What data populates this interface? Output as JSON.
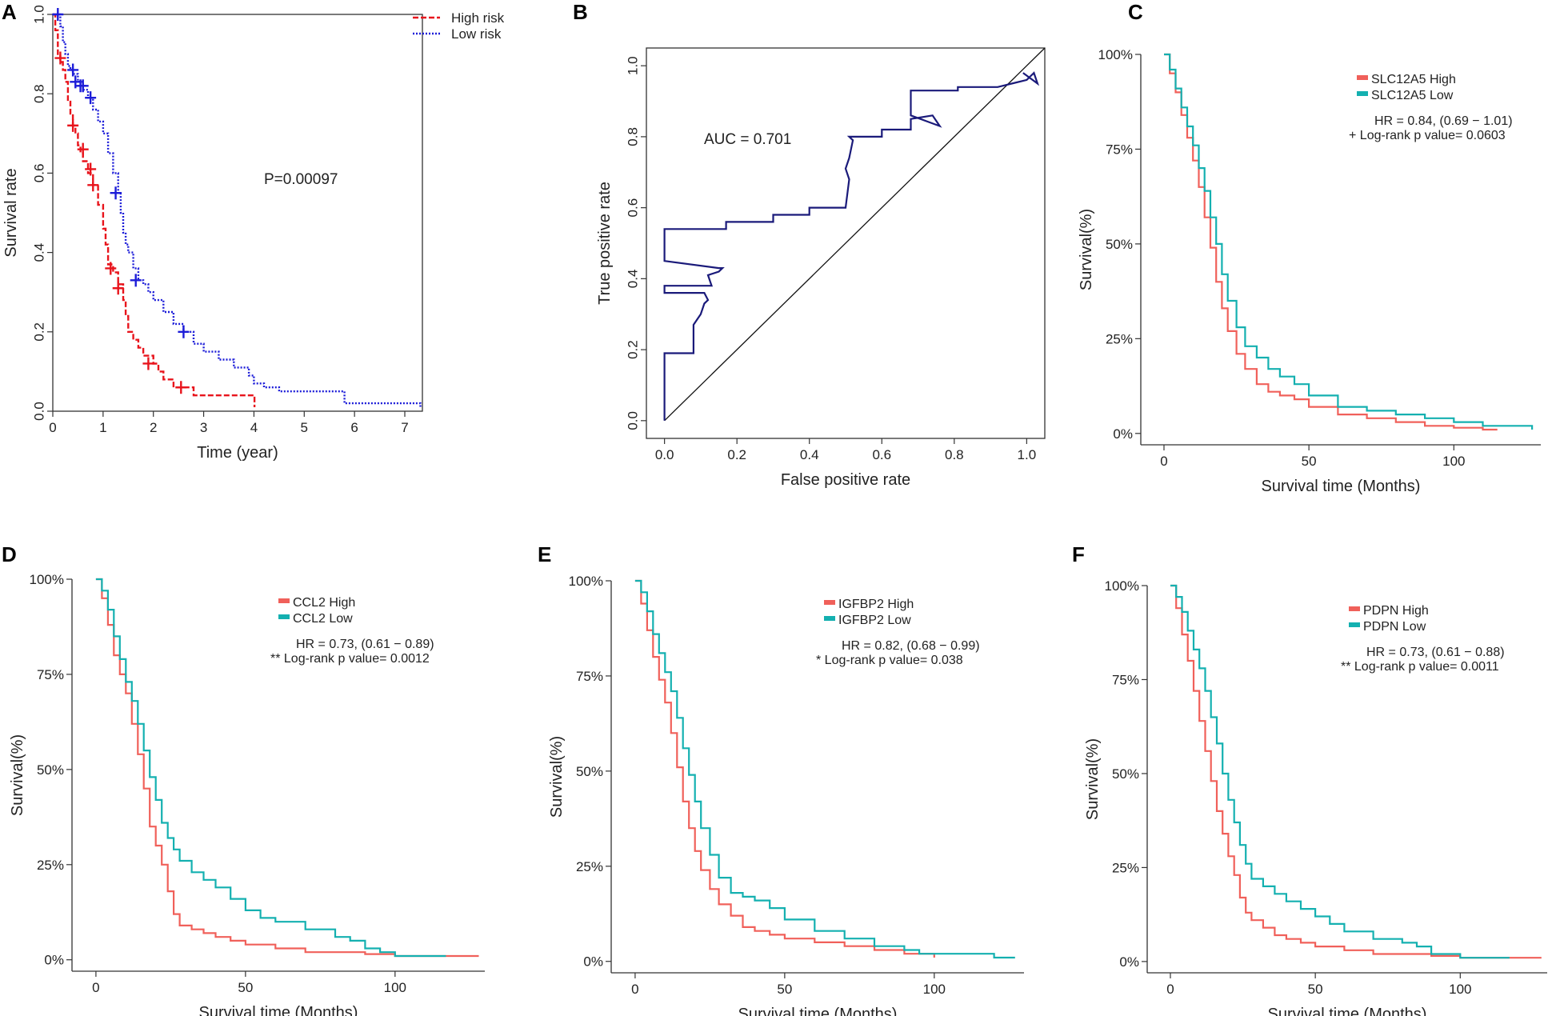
{
  "colors": {
    "high_risk": "#e8141c",
    "low_risk": "#1c1cd8",
    "roc_line": "#1a1a7a",
    "km_high": "#f0605a",
    "km_low": "#14b0b0",
    "axis": "#333333"
  },
  "chart_data": [
    {
      "panel": "A",
      "type": "line",
      "xlabel": "Time (year)",
      "ylabel": "Survival rate",
      "xlim": [
        0,
        7.35
      ],
      "ylim": [
        0,
        1.0
      ],
      "xticks": [
        0,
        1,
        2,
        3,
        4,
        5,
        6,
        7
      ],
      "yticks": [
        0.0,
        0.2,
        0.4,
        0.6,
        0.8,
        1.0
      ],
      "ytick_labels": [
        "0.0",
        "0.2",
        "0.4",
        "0.6",
        "0.8",
        "1.0"
      ],
      "legend": [
        "High risk",
        "Low risk"
      ],
      "annotation": "P=0.00097",
      "series": [
        {
          "name": "High risk",
          "x": [
            0,
            0.05,
            0.1,
            0.15,
            0.2,
            0.25,
            0.3,
            0.35,
            0.4,
            0.45,
            0.5,
            0.55,
            0.6,
            0.7,
            0.8,
            0.9,
            1.0,
            1.05,
            1.1,
            1.2,
            1.3,
            1.4,
            1.45,
            1.5,
            1.6,
            1.7,
            1.8,
            2.0,
            2.1,
            2.2,
            2.4,
            2.6,
            2.8,
            3.0,
            3.5,
            4.0,
            4.01
          ],
          "y": [
            1.0,
            0.96,
            0.9,
            0.88,
            0.86,
            0.83,
            0.78,
            0.75,
            0.72,
            0.7,
            0.67,
            0.65,
            0.63,
            0.6,
            0.57,
            0.52,
            0.46,
            0.42,
            0.37,
            0.35,
            0.32,
            0.28,
            0.24,
            0.2,
            0.18,
            0.16,
            0.14,
            0.12,
            0.1,
            0.08,
            0.06,
            0.06,
            0.04,
            0.04,
            0.04,
            0.04,
            0.01
          ],
          "censor_x": [
            0.15,
            0.4,
            0.6,
            0.75,
            0.8,
            1.15,
            1.3,
            1.9,
            2.55
          ],
          "censor_y": [
            0.89,
            0.72,
            0.66,
            0.61,
            0.57,
            0.36,
            0.31,
            0.12,
            0.06
          ]
        },
        {
          "name": "Low risk",
          "x": [
            0,
            0.1,
            0.15,
            0.2,
            0.25,
            0.3,
            0.35,
            0.4,
            0.5,
            0.6,
            0.7,
            0.8,
            0.9,
            1.0,
            1.1,
            1.2,
            1.3,
            1.35,
            1.4,
            1.45,
            1.5,
            1.6,
            1.7,
            1.8,
            1.9,
            2.0,
            2.2,
            2.4,
            2.6,
            2.8,
            3.0,
            3.3,
            3.6,
            3.9,
            4.0,
            4.2,
            4.5,
            5.0,
            5.5,
            5.8,
            6.5,
            7.0,
            7.3,
            7.31
          ],
          "y": [
            1.0,
            1.0,
            0.97,
            0.93,
            0.9,
            0.87,
            0.86,
            0.85,
            0.83,
            0.81,
            0.79,
            0.76,
            0.73,
            0.7,
            0.65,
            0.6,
            0.55,
            0.5,
            0.45,
            0.42,
            0.4,
            0.36,
            0.33,
            0.32,
            0.3,
            0.28,
            0.25,
            0.22,
            0.2,
            0.17,
            0.15,
            0.13,
            0.11,
            0.09,
            0.07,
            0.06,
            0.05,
            0.05,
            0.05,
            0.02,
            0.02,
            0.02,
            0.02,
            0.01
          ],
          "censor_x": [
            0.1,
            0.4,
            0.45,
            0.55,
            0.6,
            0.75,
            1.25,
            1.65,
            2.6
          ],
          "censor_y": [
            1.0,
            0.86,
            0.83,
            0.82,
            0.82,
            0.79,
            0.55,
            0.33,
            0.2
          ]
        }
      ]
    },
    {
      "panel": "B",
      "type": "line",
      "xlabel": "False positive rate",
      "ylabel": "True positive rate",
      "xlim": [
        -0.05,
        1.05
      ],
      "ylim": [
        -0.05,
        1.05
      ],
      "xticks": [
        0.0,
        0.2,
        0.4,
        0.6,
        0.8,
        1.0
      ],
      "yticks": [
        0.0,
        0.2,
        0.4,
        0.6,
        0.8,
        1.0
      ],
      "xtick_labels": [
        "0.0",
        "0.2",
        "0.4",
        "0.6",
        "0.8",
        "1.0"
      ],
      "ytick_labels": [
        "0.0",
        "0.2",
        "0.4",
        "0.6",
        "0.8",
        "1.0"
      ],
      "annotation": "AUC =  0.701",
      "series": [
        {
          "name": "ROC",
          "x": [
            0.0,
            0.0,
            0.08,
            0.08,
            0.1,
            0.11,
            0.12,
            0.11,
            0.0,
            0.0,
            0.13,
            0.12,
            0.15,
            0.16,
            0.15,
            0.0,
            0.0,
            0.17,
            0.17,
            0.3,
            0.3,
            0.4,
            0.4,
            0.5,
            0.51,
            0.5,
            0.51,
            0.52,
            0.51,
            0.6,
            0.6,
            0.68,
            0.68,
            0.74,
            0.76,
            0.68,
            0.68,
            0.81,
            0.81,
            0.92,
            1.0,
            1.02,
            1.03,
            0.99
          ],
          "y": [
            0.0,
            0.19,
            0.19,
            0.27,
            0.3,
            0.33,
            0.34,
            0.36,
            0.36,
            0.38,
            0.38,
            0.41,
            0.42,
            0.43,
            0.43,
            0.45,
            0.54,
            0.54,
            0.56,
            0.56,
            0.58,
            0.58,
            0.6,
            0.6,
            0.68,
            0.71,
            0.74,
            0.79,
            0.8,
            0.8,
            0.82,
            0.82,
            0.85,
            0.86,
            0.83,
            0.86,
            0.93,
            0.93,
            0.94,
            0.94,
            0.96,
            0.98,
            0.95,
            0.98
          ]
        },
        {
          "name": "diagonal",
          "x": [
            0.0,
            1.05
          ],
          "y": [
            0.0,
            1.05
          ]
        }
      ]
    },
    {
      "panel": "C",
      "type": "line",
      "xlabel": "Survival time (Months)",
      "ylabel": "Survival(%)",
      "xlim": [
        -8,
        130
      ],
      "ylim": [
        -3,
        100
      ],
      "xticks": [
        0,
        50,
        100
      ],
      "yticks": [
        0,
        25,
        50,
        75,
        100
      ],
      "ytick_labels": [
        "0%",
        "25%",
        "50%",
        "75%",
        "100%"
      ],
      "legend": [
        "SLC12A5 High",
        "SLC12A5 Low"
      ],
      "hr_text": "HR = 0.84, (0.69 − 1.01)",
      "p_text": "+ Log-rank p value= 0.0603",
      "series": [
        {
          "name": "SLC12A5 High",
          "x": [
            0,
            2,
            4,
            6,
            8,
            10,
            12,
            14,
            16,
            18,
            20,
            22,
            25,
            28,
            32,
            36,
            40,
            45,
            50,
            60,
            70,
            80,
            90,
            100,
            110,
            115
          ],
          "y": [
            100,
            95,
            90,
            84,
            78,
            72,
            65,
            57,
            49,
            40,
            33,
            27,
            21,
            17,
            13,
            11,
            10,
            9,
            7,
            5,
            4,
            3,
            2,
            1.5,
            1,
            1
          ]
        },
        {
          "name": "SLC12A5 Low",
          "x": [
            0,
            2,
            4,
            6,
            8,
            10,
            12,
            14,
            16,
            18,
            20,
            22,
            25,
            28,
            32,
            36,
            40,
            45,
            50,
            60,
            70,
            80,
            90,
            100,
            110,
            120,
            127
          ],
          "y": [
            100,
            96,
            91,
            86,
            81,
            76,
            70,
            64,
            57,
            50,
            42,
            35,
            28,
            23,
            20,
            17,
            15,
            13,
            10,
            7,
            6,
            5,
            4,
            3,
            2,
            2,
            1
          ]
        }
      ]
    },
    {
      "panel": "D",
      "type": "line",
      "xlabel": "Survival time (Months)",
      "ylabel": "Survival(%)",
      "xlim": [
        -8,
        130
      ],
      "ylim": [
        -3,
        100
      ],
      "xticks": [
        0,
        50,
        100
      ],
      "yticks": [
        0,
        25,
        50,
        75,
        100
      ],
      "ytick_labels": [
        "0%",
        "25%",
        "50%",
        "75%",
        "100%"
      ],
      "legend": [
        "CCL2 High",
        "CCL2 Low"
      ],
      "hr_text": "HR = 0.73, (0.61 − 0.89)",
      "p_text": "** Log-rank p value= 0.0012",
      "series": [
        {
          "name": "CCL2 High",
          "x": [
            0,
            2,
            4,
            6,
            8,
            10,
            12,
            14,
            16,
            18,
            20,
            22,
            24,
            26,
            28,
            32,
            36,
            40,
            45,
            50,
            60,
            70,
            80,
            90,
            100,
            110,
            120,
            128
          ],
          "y": [
            100,
            95,
            88,
            80,
            75,
            70,
            62,
            54,
            45,
            35,
            30,
            25,
            18,
            12,
            9,
            8,
            7,
            6,
            5,
            4,
            3,
            2,
            2,
            1.5,
            1,
            1,
            1,
            1
          ]
        },
        {
          "name": "CCL2 Low",
          "x": [
            0,
            2,
            4,
            6,
            8,
            10,
            12,
            14,
            16,
            18,
            20,
            22,
            24,
            26,
            28,
            32,
            36,
            40,
            45,
            50,
            55,
            60,
            70,
            80,
            85,
            90,
            95,
            100,
            110,
            117
          ],
          "y": [
            100,
            97,
            92,
            85,
            79,
            73,
            68,
            62,
            55,
            48,
            42,
            36,
            32,
            29,
            26,
            23,
            21,
            19,
            16,
            13,
            11,
            10,
            8,
            6,
            5,
            3,
            2,
            1,
            1,
            1
          ]
        }
      ]
    },
    {
      "panel": "E",
      "type": "line",
      "xlabel": "Survival time (Months)",
      "ylabel": "Survival(%)",
      "xlim": [
        -8,
        130
      ],
      "ylim": [
        -3,
        100
      ],
      "xticks": [
        0,
        50,
        100
      ],
      "yticks": [
        0,
        25,
        50,
        75,
        100
      ],
      "ytick_labels": [
        "0%",
        "25%",
        "50%",
        "75%",
        "100%"
      ],
      "legend": [
        "IGFBP2 High",
        "IGFBP2 Low"
      ],
      "hr_text": "HR = 0.82, (0.68 − 0.99)",
      "p_text": "* Log-rank p value= 0.038",
      "series": [
        {
          "name": "IGFBP2 High",
          "x": [
            0,
            2,
            4,
            6,
            8,
            10,
            12,
            14,
            16,
            18,
            20,
            22,
            25,
            28,
            32,
            36,
            40,
            45,
            50,
            60,
            70,
            80,
            90,
            100
          ],
          "y": [
            100,
            94,
            87,
            80,
            74,
            68,
            60,
            51,
            42,
            35,
            29,
            24,
            19,
            15,
            12,
            9,
            8,
            7,
            6,
            5,
            4,
            3,
            2,
            1
          ]
        },
        {
          "name": "IGFBP2 Low",
          "x": [
            0,
            2,
            4,
            6,
            8,
            10,
            12,
            14,
            16,
            18,
            20,
            22,
            25,
            28,
            32,
            36,
            40,
            45,
            50,
            60,
            70,
            80,
            90,
            95,
            100,
            110,
            120,
            127
          ],
          "y": [
            100,
            97,
            92,
            86,
            81,
            76,
            71,
            64,
            56,
            49,
            42,
            35,
            28,
            22,
            18,
            17,
            16,
            14,
            11,
            8,
            6,
            4,
            3,
            2,
            2,
            2,
            1,
            1
          ]
        }
      ]
    },
    {
      "panel": "F",
      "type": "line",
      "xlabel": "Survival time (Months)",
      "ylabel": "Survival(%)",
      "xlim": [
        -8,
        130
      ],
      "ylim": [
        -3,
        100
      ],
      "xticks": [
        0,
        50,
        100
      ],
      "yticks": [
        0,
        25,
        50,
        75,
        100
      ],
      "ytick_labels": [
        "0%",
        "25%",
        "50%",
        "75%",
        "100%"
      ],
      "legend": [
        "PDPN High",
        "PDPN Low"
      ],
      "hr_text": "HR = 0.73, (0.61 − 0.88)",
      "p_text": "** Log-rank p value= 0.0011",
      "series": [
        {
          "name": "PDPN High",
          "x": [
            0,
            2,
            4,
            6,
            8,
            10,
            12,
            14,
            16,
            18,
            20,
            22,
            24,
            26,
            28,
            32,
            36,
            40,
            45,
            50,
            60,
            70,
            80,
            90,
            100,
            110,
            120,
            128
          ],
          "y": [
            100,
            94,
            87,
            80,
            72,
            64,
            56,
            48,
            40,
            34,
            28,
            23,
            17,
            13,
            11,
            9,
            7,
            6,
            5,
            4,
            3,
            2,
            2,
            1.5,
            1,
            1,
            1,
            1
          ]
        },
        {
          "name": "PDPN Low",
          "x": [
            0,
            2,
            4,
            6,
            8,
            10,
            12,
            14,
            16,
            18,
            20,
            22,
            24,
            26,
            28,
            32,
            36,
            40,
            45,
            50,
            55,
            60,
            70,
            80,
            85,
            90,
            100,
            110,
            117
          ],
          "y": [
            100,
            97,
            93,
            88,
            83,
            78,
            72,
            65,
            58,
            50,
            43,
            37,
            31,
            26,
            22,
            20,
            18,
            16,
            14,
            12,
            10,
            8,
            6,
            5,
            4,
            2,
            1,
            1,
            1
          ]
        }
      ]
    }
  ]
}
